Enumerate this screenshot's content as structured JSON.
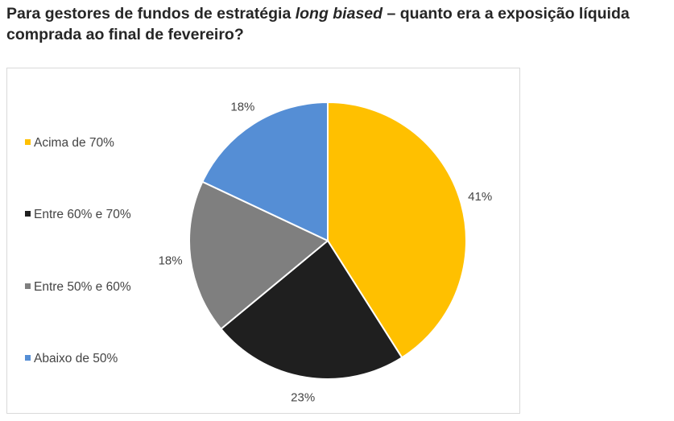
{
  "title": {
    "part1": "Para gestores de fundos de estratégia ",
    "italic": "long biased",
    "part2": " – quanto era a exposição líquida comprada ao final de fevereiro?"
  },
  "chart_data": {
    "type": "pie",
    "title": "",
    "categories": [
      "Acima de 70%",
      "Entre 60% e 70%",
      "Entre 50% e 60%",
      "Abaixo de 50%"
    ],
    "values": [
      41,
      23,
      18,
      18
    ],
    "data_labels": [
      "41%",
      "23%",
      "18%",
      "18%"
    ],
    "colors": [
      "#FFC000",
      "#1F1F1F",
      "#7F7F7F",
      "#558ED5"
    ],
    "legend_position": "left",
    "start_angle": "12 o'clock, clockwise"
  }
}
